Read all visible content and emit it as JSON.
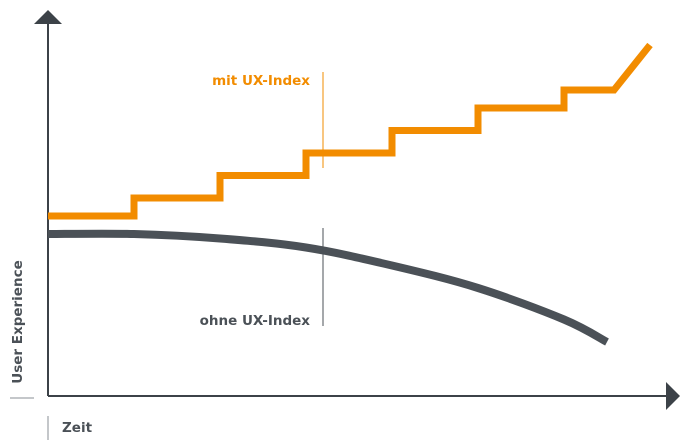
{
  "chart_data": {
    "type": "line",
    "title": "",
    "xlabel": "Zeit",
    "ylabel": "User Experience",
    "grid": false,
    "legend": "none",
    "series": [
      {
        "name": "mit UX-Index",
        "color": "#f28c00",
        "style": "step",
        "points": [
          [
            0,
            2.0
          ],
          [
            1,
            2.2
          ],
          [
            2,
            2.45
          ],
          [
            3,
            2.7
          ],
          [
            4,
            2.95
          ],
          [
            5,
            3.2
          ],
          [
            6,
            3.4
          ],
          [
            7,
            3.9
          ]
        ]
      },
      {
        "name": "ohne UX-Index",
        "color": "#4b5157",
        "style": "curve",
        "points": [
          [
            0,
            1.8
          ],
          [
            1,
            1.8
          ],
          [
            2,
            1.75
          ],
          [
            3,
            1.65
          ],
          [
            4,
            1.45
          ],
          [
            5,
            1.2
          ],
          [
            6,
            0.85
          ],
          [
            6.5,
            0.6
          ]
        ]
      }
    ],
    "annotations": {
      "with_label": "mit UX-Index",
      "without_label": "ohne UX-Index"
    },
    "colors": {
      "axis": "#3c4248",
      "guide": "#8a8f94"
    }
  }
}
